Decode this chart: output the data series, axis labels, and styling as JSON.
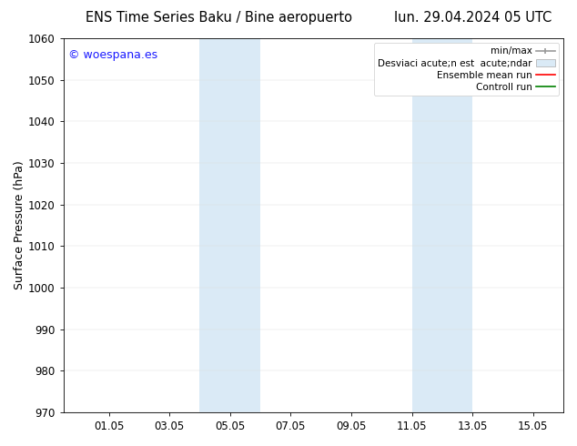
{
  "title_left": "ENS Time Series Baku / Bine aeropuerto",
  "title_right": "lun. 29.04.2024 05 UTC",
  "ylabel": "Surface Pressure (hPa)",
  "xlabel": "",
  "ylim": [
    970,
    1060
  ],
  "yticks": [
    970,
    980,
    990,
    1000,
    1010,
    1020,
    1030,
    1040,
    1050,
    1060
  ],
  "xtick_labels": [
    "01.05",
    "03.05",
    "05.05",
    "07.05",
    "09.05",
    "11.05",
    "13.05",
    "15.05"
  ],
  "xtick_positions": [
    1.0,
    3.0,
    5.0,
    7.0,
    9.0,
    11.0,
    13.0,
    15.0
  ],
  "xlim": [
    -0.5,
    16.0
  ],
  "shaded_regions": [
    {
      "xmin": 4.0,
      "xmax": 6.0,
      "color": "#daeaf6",
      "alpha": 1.0
    },
    {
      "xmin": 11.0,
      "xmax": 13.0,
      "color": "#daeaf6",
      "alpha": 1.0
    }
  ],
  "watermark_text": "© woespana.es",
  "watermark_color": "#1a1aff",
  "legend_label_minmax": "min/max",
  "legend_label_std": "Desviaci acute;n est  acute;ndar",
  "legend_label_ensemble": "Ensemble mean run",
  "legend_label_control": "Controll run",
  "legend_minmax_color": "#999999",
  "legend_std_facecolor": "#daeaf6",
  "legend_std_edgecolor": "#aaaaaa",
  "background_color": "#ffffff",
  "spine_color": "#000000",
  "title_fontsize": 10.5,
  "ylabel_fontsize": 9,
  "tick_fontsize": 8.5,
  "watermark_fontsize": 9,
  "legend_fontsize": 7.5
}
